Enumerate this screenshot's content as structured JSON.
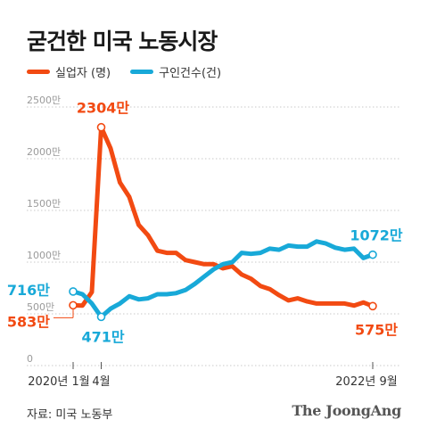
{
  "title": "굳건한 미국 노동시장",
  "legend": [
    {
      "label": "실업자 (명)",
      "color": "#f24a12"
    },
    {
      "label": "구인건수(건)",
      "color": "#18a9d8"
    }
  ],
  "source": "자료: 미국 노동부",
  "logo": "The JoongAng",
  "chart_data": {
    "type": "line",
    "title": "굳건한 미국 노동시장",
    "y_unit": "만",
    "ylim": [
      0,
      2500
    ],
    "yticks": [
      0,
      500,
      1000,
      1500,
      2000,
      2500
    ],
    "ytick_labels": [
      "0",
      "500만",
      "1000만",
      "1500만",
      "2000만",
      "2500만"
    ],
    "x_start": "2020-01",
    "x_end": "2022-09",
    "x_tick_labels": [
      {
        "month_index": 0,
        "label": "2020년 1월"
      },
      {
        "month_index": 3,
        "label": "4월"
      },
      {
        "month_index": 32,
        "label": "2022년 9월"
      }
    ],
    "grid": "dotted horizontal",
    "legend_position": "top-left",
    "series": [
      {
        "name": "실업자 (명)",
        "color": "#f24a12",
        "values": [
          583,
          580,
          710,
          2304,
          2100,
          1770,
          1630,
          1360,
          1260,
          1110,
          1090,
          1090,
          1020,
          1000,
          980,
          980,
          940,
          960,
          880,
          840,
          770,
          740,
          680,
          630,
          650,
          620,
          600,
          600,
          600,
          600,
          580,
          610,
          575
        ]
      },
      {
        "name": "구인건수(건)",
        "color": "#18a9d8",
        "values": [
          716,
          690,
          600,
          471,
          550,
          600,
          670,
          640,
          650,
          690,
          690,
          700,
          730,
          790,
          860,
          930,
          980,
          1000,
          1090,
          1080,
          1090,
          1130,
          1120,
          1160,
          1150,
          1150,
          1200,
          1180,
          1140,
          1120,
          1130,
          1040,
          1072
        ]
      }
    ],
    "annotations": [
      {
        "series": 0,
        "month_index": 0,
        "text": "583만"
      },
      {
        "series": 0,
        "month_index": 3,
        "text": "2304만"
      },
      {
        "series": 0,
        "month_index": 32,
        "text": "575만"
      },
      {
        "series": 1,
        "month_index": 0,
        "text": "716만"
      },
      {
        "series": 1,
        "month_index": 3,
        "text": "471만"
      },
      {
        "series": 1,
        "month_index": 32,
        "text": "1072만"
      }
    ]
  }
}
